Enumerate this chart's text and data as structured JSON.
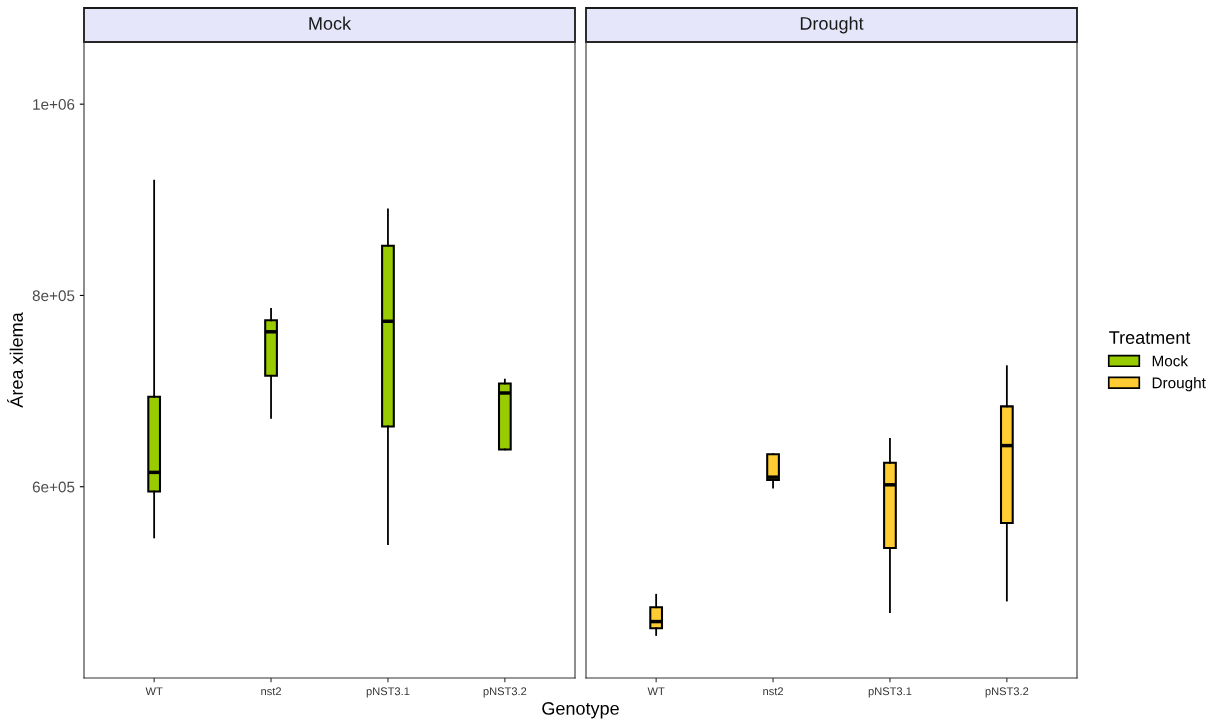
{
  "chart_data": [
    {
      "type": "box",
      "title": "Mock",
      "ylabel": "Área xilema",
      "xlabel": "Genotype",
      "categories": [
        "WT",
        "nst2",
        "pNST3.1",
        "pNST3.2"
      ],
      "series": [
        {
          "name": "Mock",
          "color": "#99cc00",
          "boxes": [
            {
              "low": 547000,
              "q1": 595000,
              "median": 615000,
              "q3": 694000,
              "high": 920000
            },
            {
              "low": 672000,
              "q1": 716000,
              "median": 762000,
              "q3": 774000,
              "high": 786000
            },
            {
              "low": 540000,
              "q1": 663000,
              "median": 773000,
              "q3": 852000,
              "high": 890000
            },
            {
              "low": 639000,
              "q1": 639000,
              "median": 698000,
              "q3": 708000,
              "high": 712000
            }
          ]
        }
      ],
      "ylim": [
        400000,
        1065000
      ],
      "yticks": [
        {
          "value": 600000,
          "label": "6e+05"
        },
        {
          "value": 800000,
          "label": "8e+05"
        },
        {
          "value": 1000000,
          "label": "1e+06"
        }
      ],
      "grid": false
    },
    {
      "type": "box",
      "title": "Drought",
      "legend_title": "Treatment",
      "legend": "right",
      "categories": [
        "WT",
        "nst2",
        "pNST3.1",
        "pNST3.2"
      ],
      "series": [
        {
          "name": "Drought",
          "color": "#ffcc33",
          "boxes": [
            {
              "low": 445000,
              "q1": 452000,
              "median": 459000,
              "q3": 474000,
              "high": 487000
            },
            {
              "low": 599000,
              "q1": 607000,
              "median": 610000,
              "q3": 634000,
              "high": 634000
            },
            {
              "low": 469000,
              "q1": 536000,
              "median": 602000,
              "q3": 625000,
              "high": 650000
            },
            {
              "low": 481000,
              "q1": 562000,
              "median": 643000,
              "q3": 684000,
              "high": 726000
            }
          ]
        }
      ],
      "ylim": [
        400000,
        1065000
      ],
      "tick_labels": "x",
      "grid": false
    }
  ]
}
